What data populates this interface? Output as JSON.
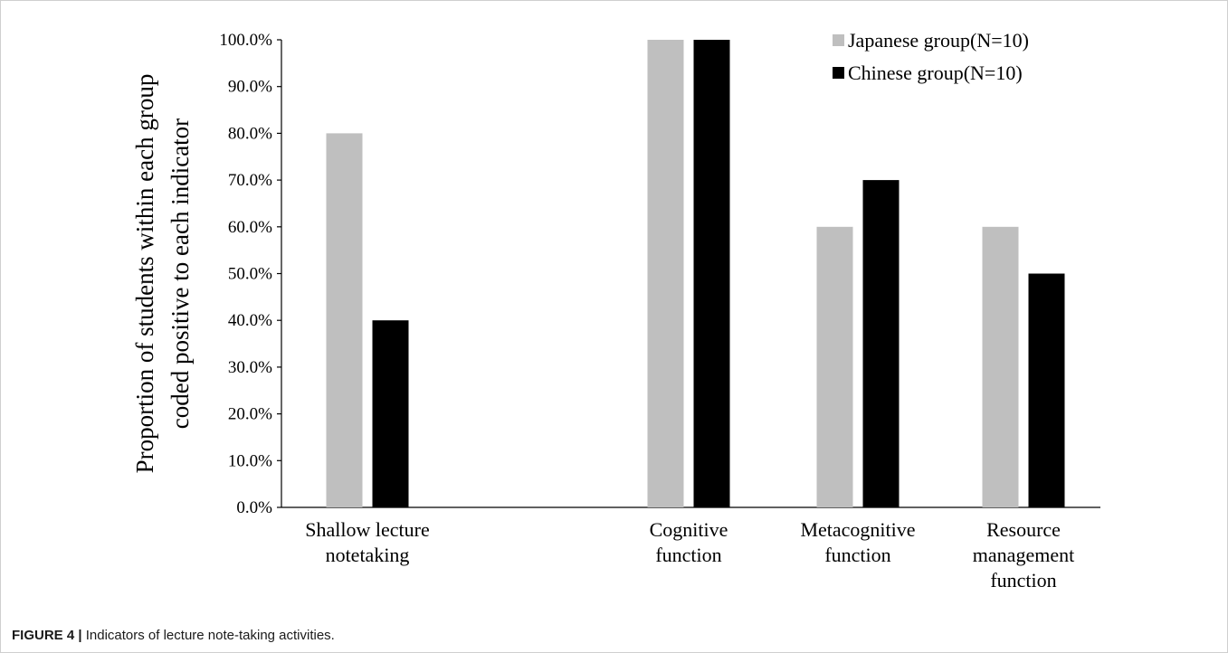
{
  "caption": {
    "figure_label": "FIGURE 4 |",
    "text": "Indicators of lecture note-taking activities."
  },
  "chart_data": {
    "type": "bar",
    "ylabel_lines": [
      "Proportion of students within each group",
      "coded positive to each indicator"
    ],
    "xlabel": "",
    "ylim": [
      0,
      100
    ],
    "y_ticks": [
      "0.0%",
      "10.0%",
      "20.0%",
      "30.0%",
      "40.0%",
      "50.0%",
      "60.0%",
      "70.0%",
      "80.0%",
      "90.0%",
      "100.0%"
    ],
    "categories": [
      [
        "Shallow lecture",
        "notetaking"
      ],
      [
        "Cognitive",
        "function"
      ],
      [
        "Metacognitive",
        "function"
      ],
      [
        "Resource",
        "management",
        "function"
      ]
    ],
    "series": [
      {
        "name": "Japanese group(N=10)",
        "color": "#bfbfbf",
        "values": [
          80,
          100,
          60,
          60
        ]
      },
      {
        "name": "Chinese group(N=10)",
        "color": "#000000",
        "values": [
          40,
          100,
          70,
          50
        ]
      }
    ],
    "grid": false,
    "legend_position": "top-right"
  }
}
